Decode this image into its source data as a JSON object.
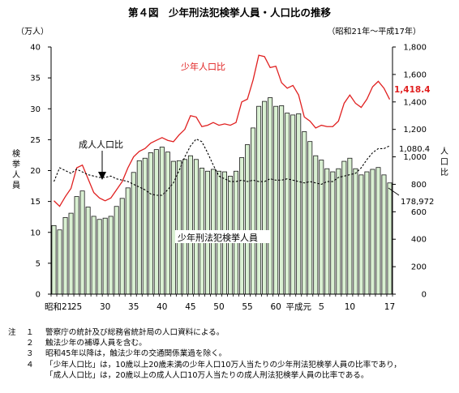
{
  "title": "第４図　少年刑法犯検挙人員・人口比の推移",
  "period": "（昭和21年～平成17年）",
  "colors": {
    "bar_fill": "#d9f0d2",
    "bar_stroke": "#1a1a1a",
    "youth_ratio": "#e02020",
    "adult_ratio": "#000000"
  },
  "notes": [
    {
      "marker": "注",
      "num": "１",
      "text": "警察庁の統計及び総務省統計局の人口資料による。"
    },
    {
      "marker": "",
      "num": "２",
      "text": "触法少年の補導人員を含む。"
    },
    {
      "marker": "",
      "num": "３",
      "text": "昭和45年以降は，触法少年の交通関係業過を除く。"
    },
    {
      "marker": "",
      "num": "４",
      "text": "「少年人口比」は，10歳以上20歳未満の少年人口10万人当たりの少年刑法犯検挙人員の比率であり，"
    },
    {
      "marker": "",
      "num": "",
      "text": "「成人人口比」は，20歳以上の成人人口10万人当たりの成人刑法犯検挙人員の比率である。"
    }
  ],
  "chart_data": {
    "type": "bar",
    "title": "第４図　少年刑法犯検挙人員・人口比の推移",
    "subtitle": "（昭和21年～平成17年）",
    "x": [
      "昭和21",
      "22",
      "23",
      "24",
      "25",
      "26",
      "27",
      "28",
      "29",
      "30",
      "31",
      "32",
      "33",
      "34",
      "35",
      "36",
      "37",
      "38",
      "39",
      "40",
      "41",
      "42",
      "43",
      "44",
      "45",
      "46",
      "47",
      "48",
      "49",
      "50",
      "51",
      "52",
      "53",
      "54",
      "55",
      "56",
      "57",
      "58",
      "59",
      "60",
      "61",
      "62",
      "63",
      "平成元",
      "2",
      "3",
      "4",
      "5",
      "6",
      "7",
      "8",
      "9",
      "10",
      "11",
      "12",
      "13",
      "14",
      "15",
      "16",
      "17"
    ],
    "x_tick_labels": [
      {
        "index": 0,
        "label": "昭和21"
      },
      {
        "index": 4,
        "label": "25"
      },
      {
        "index": 9,
        "label": "30"
      },
      {
        "index": 14,
        "label": "35"
      },
      {
        "index": 19,
        "label": "40"
      },
      {
        "index": 24,
        "label": "45"
      },
      {
        "index": 29,
        "label": "50"
      },
      {
        "index": 34,
        "label": "55"
      },
      {
        "index": 39,
        "label": "60"
      },
      {
        "index": 43,
        "label": "平成元"
      },
      {
        "index": 47,
        "label": "５"
      },
      {
        "index": 52,
        "label": "10"
      },
      {
        "index": 59,
        "label": "17"
      }
    ],
    "left_axis": {
      "unit": "（万人）",
      "label": "検挙人員",
      "ylim": [
        0,
        40
      ],
      "ticks": [
        0,
        5,
        10,
        15,
        20,
        25,
        30,
        35,
        40
      ]
    },
    "right_axis": {
      "label": "人口比",
      "ylim": [
        0,
        1800
      ],
      "ticks": [
        0,
        200,
        400,
        600,
        800,
        1000,
        1200,
        1400,
        1600,
        1800
      ],
      "tick_labels": [
        "0",
        "200",
        "400",
        "600",
        "800",
        "1,000",
        "1,200",
        "1,400",
        "1,600",
        "1,800"
      ]
    },
    "series": [
      {
        "name": "少年刑法犯検挙人員",
        "kind": "bar",
        "axis": "left",
        "values": [
          11.1,
          10.4,
          12.4,
          13.1,
          15.8,
          16.7,
          14.1,
          12.6,
          12.1,
          12.3,
          12.6,
          14.2,
          15.5,
          17.2,
          19.7,
          21.6,
          22.0,
          22.9,
          23.4,
          23.8,
          23.0,
          21.5,
          21.6,
          21.8,
          22.4,
          21.8,
          20.4,
          19.9,
          20.2,
          19.9,
          19.8,
          19.1,
          19.9,
          22.1,
          24.2,
          26.9,
          30.4,
          31.2,
          31.8,
          30.4,
          30.5,
          29.3,
          29.0,
          29.2,
          26.3,
          24.7,
          22.4,
          21.7,
          20.3,
          19.8,
          20.3,
          21.5,
          22.0,
          20.3,
          19.3,
          19.8,
          20.2,
          20.5,
          19.3,
          18.0
        ]
      },
      {
        "name": "少年人口比",
        "kind": "line",
        "axis": "right",
        "values": [
          680,
          640,
          710,
          770,
          920,
          940,
          840,
          740,
          700,
          680,
          700,
          760,
          820,
          920,
          1000,
          1040,
          1060,
          1100,
          1120,
          1140,
          1120,
          1110,
          1160,
          1200,
          1300,
          1290,
          1220,
          1230,
          1250,
          1230,
          1240,
          1230,
          1250,
          1400,
          1420,
          1560,
          1740,
          1730,
          1650,
          1660,
          1540,
          1500,
          1520,
          1450,
          1290,
          1260,
          1210,
          1230,
          1220,
          1220,
          1260,
          1390,
          1450,
          1390,
          1360,
          1420,
          1510,
          1550,
          1500,
          1418.4
        ]
      },
      {
        "name": "成人人口比",
        "kind": "line",
        "axis": "right",
        "values": [
          820,
          920,
          900,
          880,
          910,
          890,
          870,
          860,
          850,
          850,
          860,
          840,
          830,
          820,
          800,
          780,
          760,
          730,
          720,
          720,
          760,
          810,
          900,
          1000,
          1080,
          1130,
          1110,
          1030,
          940,
          860,
          840,
          820,
          820,
          830,
          820,
          830,
          820,
          820,
          840,
          830,
          830,
          840,
          830,
          820,
          810,
          820,
          810,
          800,
          820,
          820,
          850,
          860,
          870,
          880,
          920,
          980,
          1030,
          1060,
          1060,
          1080.4
        ]
      }
    ],
    "annotations": [
      {
        "text": "少年人口比",
        "target": "少年人口比"
      },
      {
        "text": "成人人口比",
        "target": "成人人口比"
      },
      {
        "text": "少年刑法犯検挙人員",
        "target": "少年刑法犯検挙人員"
      },
      {
        "text": "1,418.4",
        "target": "少年人口比"
      },
      {
        "text": "1,080.4",
        "target": "成人人口比"
      },
      {
        "text": "178,972",
        "target": "少年刑法犯検挙人員"
      }
    ],
    "grid": false,
    "legend": "none"
  }
}
